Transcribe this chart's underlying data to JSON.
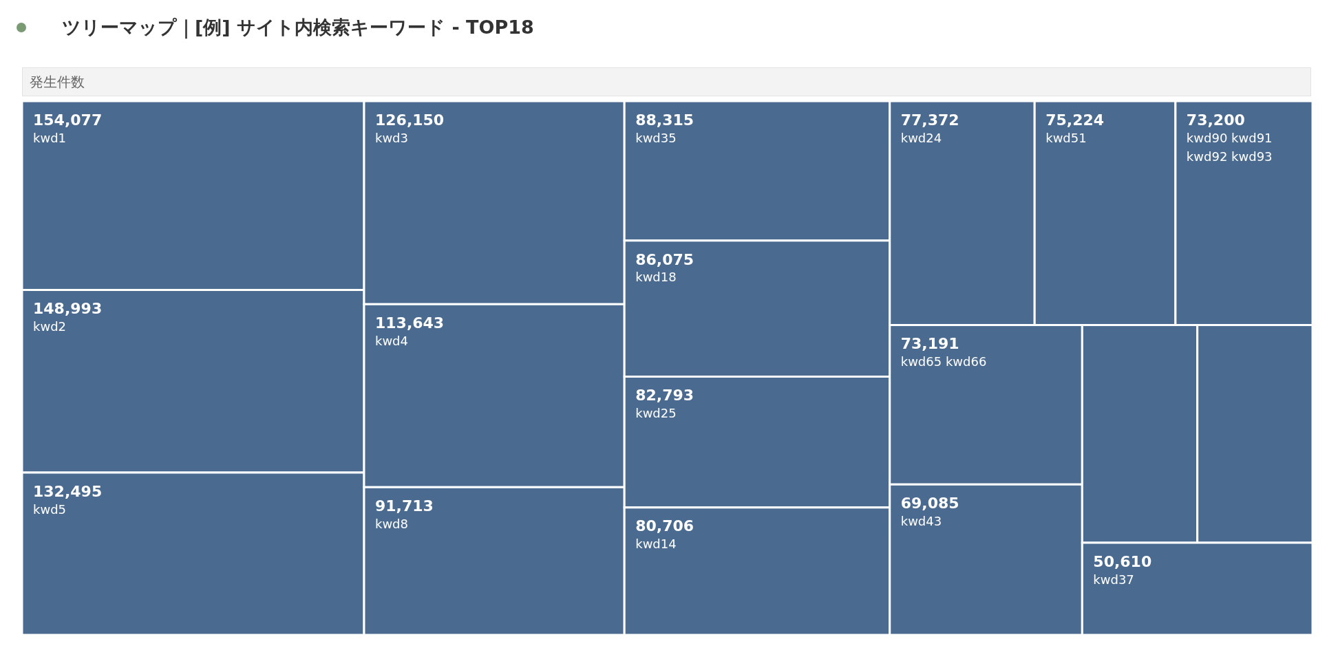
{
  "chart_data": {
    "type": "other",
    "title": "ツリーマップ｜[例] サイト内検索キーワード - TOP18",
    "subtitle": "発生件数",
    "categories": [
      "kwd1",
      "kwd2",
      "kwd5",
      "kwd3",
      "kwd4",
      "kwd8",
      "kwd35",
      "kwd18",
      "kwd25",
      "kwd14",
      "kwd24",
      "kwd51",
      "kwd90 kwd91 kwd92 kwd93",
      "kwd65 kwd66",
      "kwd43",
      null,
      null,
      "kwd37"
    ],
    "values": [
      154077,
      148993,
      132495,
      126150,
      113643,
      91713,
      88315,
      86075,
      82793,
      80706,
      77372,
      75224,
      73200,
      73191,
      69085,
      null,
      null,
      50610
    ],
    "value_labels": [
      "154,077",
      "148,993",
      "132,495",
      "126,150",
      "113,643",
      "91,713",
      "88,315",
      "86,075",
      "82,793",
      "80,706",
      "77,372",
      "75,224",
      "73,200",
      "73,191",
      "69,085",
      null,
      null,
      "50,610"
    ],
    "color": "#4a6b8f"
  }
}
